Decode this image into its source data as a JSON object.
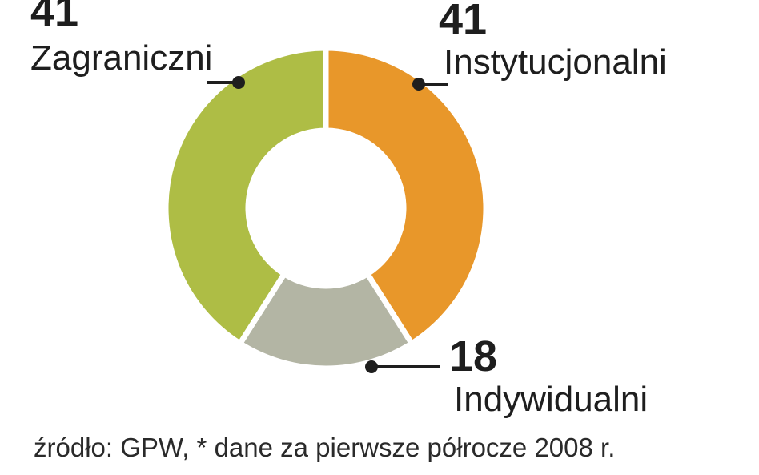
{
  "chart_data": {
    "type": "pie",
    "donut": true,
    "slices": [
      {
        "label": "Instytucjonalni",
        "value": 41,
        "color": "#e8972a"
      },
      {
        "label": "Indywidualni",
        "value": 18,
        "color": "#b3b5a4"
      },
      {
        "label": "Zagraniczni",
        "value": 41,
        "color": "#aebd45"
      }
    ],
    "source_note": "źródło: GPW, * dane za pierwsze półrocze 2008 r."
  }
}
